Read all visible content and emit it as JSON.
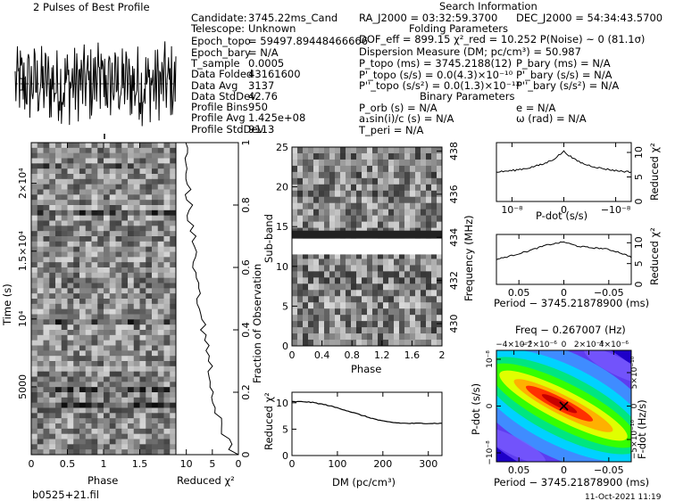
{
  "header": {
    "pulses_title": "2 Pulses of Best Profile",
    "search_title": "Search Information",
    "folding_title": "Folding Parameters",
    "binary_title": "Binary Parameters"
  },
  "info_left": [
    {
      "k": "Candidate:",
      "v": "3745.22ms_Cand"
    },
    {
      "k": "Telescope:",
      "v": "Unknown"
    },
    {
      "k": "Epoch_topo",
      "v": "= 59497.89448466666"
    },
    {
      "k": "Epoch_bary",
      "v": "= N/A"
    },
    {
      "k": "T_sample",
      "v": "0.0005"
    },
    {
      "k": "Data Folded",
      "v": "43161600"
    },
    {
      "k": "Data Avg",
      "v": "3137"
    },
    {
      "k": "Data StdDev",
      "v": "42.76"
    },
    {
      "k": "Profile Bins",
      "v": "950"
    },
    {
      "k": "Profile Avg",
      "v": "1.425e+08"
    },
    {
      "k": "Profile StdDev",
      "v": "9113"
    }
  ],
  "info_search": {
    "ra": "RA_J2000 = 03:32:59.3700",
    "dec": "DEC_J2000 = 54:34:43.5700",
    "dof": "DOF_eff = 899.15  χ²_red = 10.252  P(Noise) ~ 0   (81.1σ)",
    "dm": "Dispersion Measure (DM; pc/cm³) = 50.987",
    "p_topo": "P_topo (ms) = 3745.2188(12)",
    "p_bary": "P_bary (ms) = N/A",
    "pd_topo": "P'_topo (s/s) = 0.0(4.3)×10⁻¹⁰",
    "pd_bary": "P'_bary (s/s) = N/A",
    "pdd_topo": "P''_topo (s/s²) = 0.0(1.3)×10⁻¹³",
    "pdd_bary": "P''_bary (s/s²) = N/A",
    "porb": "P_orb (s) = N/A",
    "e": "e = N/A",
    "asini": "a₁sin(i)/c (s) = N/A",
    "omega": "ω (rad) = N/A",
    "tperi": "T_peri = N/A"
  },
  "footer": {
    "filename": "b0525+21.fil",
    "timestamp": "11-Oct-2021 11:19"
  },
  "chart_data": [
    {
      "id": "profile",
      "type": "line",
      "title": "2 Pulses of Best Profile",
      "xlabel": "",
      "ylabel": "",
      "note": "noisy pulse profile repeated twice over phase 0–2"
    },
    {
      "id": "time_phase",
      "type": "heatmap",
      "xlabel": "Phase",
      "ylabel": "Time (s)",
      "xlim": [
        0,
        2
      ],
      "ylim": [
        0,
        23000
      ],
      "x_ticks": [
        "0",
        "0.5",
        "1",
        "1.5"
      ],
      "y_ticks": [
        "5000",
        "10⁴",
        "1.5×10⁴",
        "2×10⁴"
      ],
      "rows": 60,
      "colormap": "grayscale"
    },
    {
      "id": "time_chi2",
      "type": "line",
      "xlabel": "Reduced χ²",
      "ylabel": "Fraction of Observation",
      "x_ticks": [
        "10",
        "5",
        "0"
      ],
      "y_ticks": [
        "0",
        "0.2",
        "0.4",
        "0.6",
        "0.8",
        "1"
      ],
      "xlim": [
        12,
        0
      ],
      "ylim": [
        0,
        1
      ]
    },
    {
      "id": "subband_phase",
      "type": "heatmap",
      "xlabel": "Phase",
      "ylabel": "Sub-band",
      "right_label": "Frequency (MHz)",
      "xlim": [
        0,
        2
      ],
      "ylim": [
        0,
        25
      ],
      "x_ticks": [
        "0",
        "0.4",
        "0.8",
        "1.2",
        "1.6",
        "2"
      ],
      "y_ticks": [
        "0",
        "5",
        "10",
        "15",
        "20",
        "25"
      ],
      "freq_ticks": [
        "430",
        "432",
        "434",
        "436",
        "438"
      ],
      "rows": 32,
      "masked_rows": [
        13,
        14
      ],
      "colormap": "grayscale"
    },
    {
      "id": "dm_chi2",
      "type": "line",
      "xlabel": "DM (pc/cm³)",
      "ylabel": "Reduced χ²",
      "xlim": [
        0,
        330
      ],
      "ylim": [
        0,
        12
      ],
      "x_ticks": [
        "0",
        "100",
        "200",
        "300"
      ],
      "y_ticks": [
        "0",
        "5",
        "10"
      ],
      "x": [
        0,
        30,
        50,
        80,
        110,
        140,
        170,
        200,
        230,
        250,
        280,
        330
      ],
      "y": [
        10.2,
        10.2,
        10.0,
        9.5,
        8.8,
        8.0,
        7.2,
        6.5,
        6.2,
        6.1,
        6.1,
        6.1
      ]
    },
    {
      "id": "pdot_chi2",
      "type": "line",
      "xlabel": "P-dot (s/s)",
      "ylabel": "Reduced χ²",
      "x_ticks": [
        "10⁻⁸",
        "0",
        "−10⁻⁸"
      ],
      "y_ticks": [
        "0",
        "5",
        "10"
      ],
      "xlim": [
        -1.3,
        1.3
      ],
      "ylim": [
        0,
        12
      ],
      "x": [
        -1.3,
        -1.0,
        -0.7,
        -0.4,
        -0.2,
        0,
        0.2,
        0.4,
        0.7,
        1.0,
        1.3
      ],
      "y": [
        6.0,
        6.3,
        6.8,
        7.6,
        8.6,
        10.2,
        8.6,
        7.6,
        6.8,
        6.3,
        6.0
      ]
    },
    {
      "id": "period_chi2",
      "type": "line",
      "xlabel": "Period − 3745.21878900 (ms)",
      "ylabel": "Reduced χ²",
      "x_ticks": [
        "0.05",
        "0",
        "−0.05"
      ],
      "y_ticks": [
        "0",
        "5",
        "10"
      ],
      "xlim": [
        0.075,
        -0.075
      ],
      "ylim": [
        0,
        12
      ],
      "x": [
        0.075,
        0.06,
        0.04,
        0.02,
        0.0,
        -0.015,
        -0.03,
        -0.045,
        -0.06,
        -0.075
      ],
      "y": [
        6.0,
        6.8,
        8.0,
        9.4,
        10.2,
        9.2,
        8.8,
        8.6,
        7.8,
        6.6
      ]
    },
    {
      "id": "p_pdot",
      "type": "heatmap",
      "title": "Freq − 0.267007 (Hz)",
      "xlabel": "Period − 3745.21878900 (ms)",
      "ylabel": "P-dot (s/s)",
      "right_label": "F-dot (Hz/s)",
      "x_ticks": [
        "0.05",
        "0",
        "−0.05"
      ],
      "top_ticks": [
        "−4×10⁻⁶",
        "−2×10⁻⁶",
        "0",
        "2×10⁻⁶",
        "4×10⁻⁶"
      ],
      "y_ticks": [
        "10⁻⁸",
        "0",
        "−10⁻⁸"
      ],
      "right_ticks": [
        "5×10⁻¹⁰",
        "0",
        "−5×10⁻¹⁰"
      ],
      "colormap": "rainbow"
    }
  ]
}
